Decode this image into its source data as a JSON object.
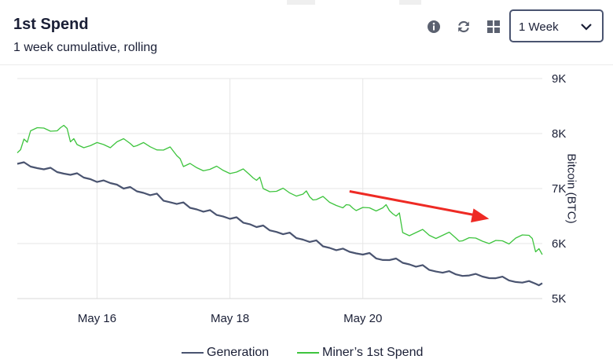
{
  "card": {
    "title": "1st Spend",
    "subtitle": "1 week cumulative, rolling",
    "tools": {
      "info": "info-icon",
      "refresh": "refresh-icon",
      "grid": "grid-icon"
    },
    "period_select": {
      "value": "1 Week"
    }
  },
  "legend": [
    {
      "label": "Generation",
      "color": "#4a5470"
    },
    {
      "label": "Miner’s 1st Spend",
      "color": "#3ec43e"
    }
  ],
  "annotation": {
    "color": "#ee2a24",
    "from": [
      "May 20",
      6.95
    ],
    "to": [
      "May 22",
      6.45
    ]
  },
  "chart_data": {
    "type": "line",
    "title": "",
    "xlabel": "",
    "ylabel": "Bitcoin (BTC)",
    "x_ticks": [
      "May 16",
      "May 18",
      "May 20"
    ],
    "y_ticks": [
      "5K",
      "6K",
      "7K",
      "8K",
      "9K"
    ],
    "xlim": [
      "May 14.8",
      "May 22.7"
    ],
    "ylim": [
      5000,
      9000
    ],
    "grid": true,
    "legend_position": "bottom",
    "series": [
      {
        "name": "Generation",
        "color": "#4a5470",
        "x": [
          14.8,
          15.0,
          15.2,
          15.4,
          15.6,
          15.8,
          16.0,
          16.2,
          16.4,
          16.6,
          16.8,
          17.0,
          17.2,
          17.4,
          17.6,
          17.8,
          18.0,
          18.2,
          18.4,
          18.6,
          18.8,
          19.0,
          19.2,
          19.4,
          19.6,
          19.8,
          20.0,
          20.2,
          20.4,
          20.6,
          20.8,
          21.0,
          21.2,
          21.4,
          21.6,
          21.8,
          22.0,
          22.2,
          22.4,
          22.6,
          22.7
        ],
        "y": [
          7450,
          7400,
          7350,
          7300,
          7250,
          7200,
          7120,
          7100,
          7000,
          6950,
          6880,
          6780,
          6720,
          6650,
          6580,
          6520,
          6450,
          6380,
          6300,
          6240,
          6170,
          6100,
          6030,
          5950,
          5880,
          5850,
          5800,
          5730,
          5700,
          5650,
          5580,
          5520,
          5470,
          5440,
          5420,
          5400,
          5370,
          5330,
          5290,
          5270,
          5280
        ]
      },
      {
        "name": "Miner’s 1st Spend",
        "color": "#3ec43e",
        "x": [
          14.8,
          14.9,
          15.0,
          15.2,
          15.4,
          15.5,
          15.6,
          15.7,
          15.9,
          16.1,
          16.3,
          16.5,
          16.6,
          16.8,
          17.0,
          17.2,
          17.3,
          17.5,
          17.7,
          17.9,
          18.1,
          18.3,
          18.4,
          18.5,
          18.7,
          18.9,
          19.1,
          19.2,
          19.3,
          19.5,
          19.7,
          19.8,
          19.9,
          20.1,
          20.3,
          20.4,
          20.5,
          20.6,
          20.8,
          21.0,
          21.2,
          21.4,
          21.5,
          21.7,
          21.9,
          22.1,
          22.3,
          22.5,
          22.6,
          22.7
        ],
        "y": [
          7650,
          7900,
          8050,
          8100,
          8050,
          8150,
          7850,
          7800,
          7780,
          7800,
          7850,
          7820,
          7780,
          7760,
          7700,
          7600,
          7400,
          7380,
          7350,
          7330,
          7300,
          7250,
          7150,
          7000,
          6950,
          6920,
          6900,
          6850,
          6800,
          6750,
          6650,
          6700,
          6600,
          6650,
          6650,
          6600,
          6500,
          6200,
          6200,
          6150,
          6150,
          6100,
          6050,
          6100,
          6000,
          6050,
          6100,
          6150,
          5850,
          5800
        ]
      }
    ]
  }
}
